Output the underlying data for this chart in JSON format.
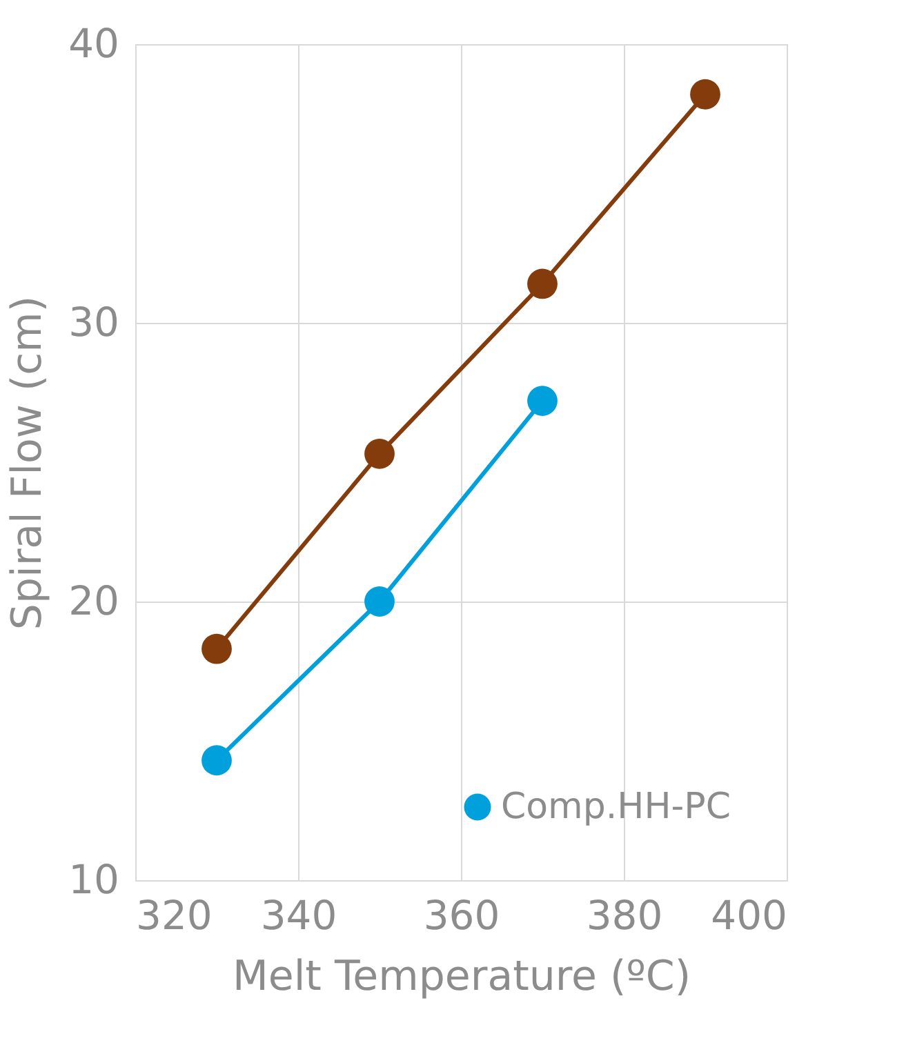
{
  "chart_data": {
    "type": "line",
    "xlabel": "Melt Temperature (ºC)",
    "ylabel": "Spiral Flow (cm)",
    "series": [
      {
        "color": "#843c0c",
        "x": [
          330,
          350,
          370,
          390
        ],
        "values": [
          18.3,
          25.3,
          31.4,
          38.2
        ]
      },
      {
        "name": "Comp.HH-PC",
        "color": "#00a0dc",
        "x": [
          330,
          350,
          370
        ],
        "values": [
          14.3,
          20.0,
          27.2
        ]
      }
    ],
    "xlim": [
      320,
      400
    ],
    "xticks": [
      320,
      340,
      360,
      380,
      400
    ],
    "ylim": [
      10,
      40
    ],
    "yticks": [
      10,
      20,
      30,
      40
    ],
    "grid": true,
    "legend": "bottom right",
    "marker": "circle",
    "line_style": "solid"
  }
}
